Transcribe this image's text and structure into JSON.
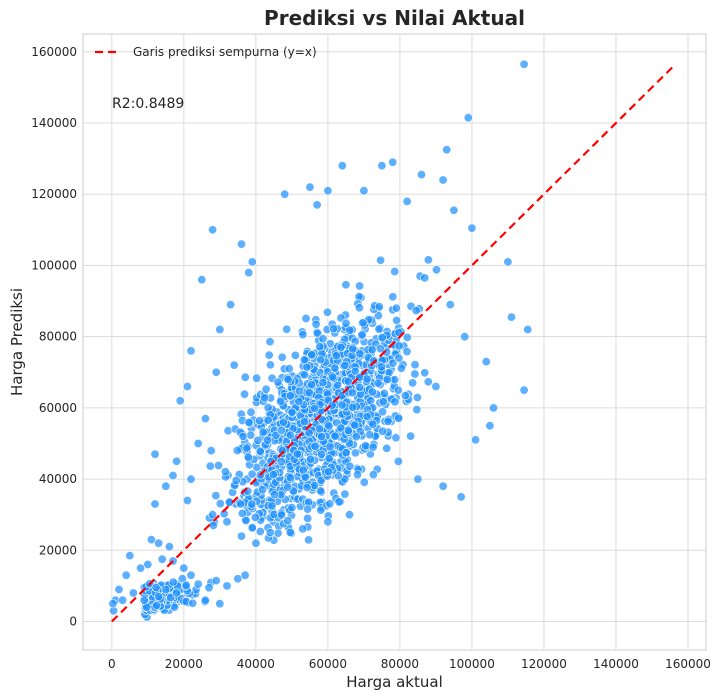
{
  "chart_data": {
    "type": "scatter",
    "title": "Prediksi vs Nilai Aktual",
    "xlabel": "Harga aktual",
    "ylabel": "Harga Prediksi",
    "xlim": [
      -8000,
      165000
    ],
    "ylim": [
      -8000,
      165000
    ],
    "xticks": [
      0,
      20000,
      40000,
      60000,
      80000,
      100000,
      120000,
      140000,
      160000
    ],
    "yticks": [
      0,
      20000,
      40000,
      60000,
      80000,
      100000,
      120000,
      140000,
      160000
    ],
    "xtick_labels": [
      "0",
      "20000",
      "40000",
      "60000",
      "80000",
      "100000",
      "120000",
      "140000",
      "160000"
    ],
    "ytick_labels": [
      "0",
      "20000",
      "40000",
      "60000",
      "80000",
      "100000",
      "120000",
      "140000",
      "160000"
    ],
    "grid": true,
    "legend_position": "top-left",
    "legend_label": "Garis prediksi sempurna (y=x)",
    "annotation": "R2:0.8489",
    "point_color": "#1E90FF",
    "line_color": "#FF0000",
    "reference_line": {
      "x": [
        0,
        156000
      ],
      "y": [
        0,
        156000
      ]
    },
    "points": [
      [
        114500,
        156500
      ],
      [
        99000,
        141500
      ],
      [
        93000,
        132500
      ],
      [
        78000,
        129000
      ],
      [
        64000,
        128000
      ],
      [
        75000,
        128000
      ],
      [
        86000,
        125500
      ],
      [
        92000,
        124000
      ],
      [
        55000,
        122000
      ],
      [
        60000,
        121000
      ],
      [
        70000,
        121000
      ],
      [
        48000,
        120000
      ],
      [
        82000,
        118000
      ],
      [
        57000,
        117000
      ],
      [
        95000,
        115500
      ],
      [
        100000,
        110500
      ],
      [
        28000,
        110000
      ],
      [
        110000,
        101000
      ],
      [
        36000,
        106000
      ],
      [
        39000,
        101000
      ],
      [
        25000,
        96000
      ],
      [
        38000,
        98000
      ],
      [
        33000,
        89000
      ],
      [
        30000,
        82000
      ],
      [
        22000,
        76000
      ],
      [
        111000,
        85500
      ],
      [
        115500,
        82000
      ],
      [
        114500,
        65000
      ],
      [
        105000,
        55000
      ],
      [
        101000,
        51000
      ],
      [
        106000,
        60000
      ],
      [
        104000,
        73000
      ],
      [
        98000,
        80000
      ],
      [
        94000,
        89000
      ],
      [
        90000,
        66000
      ],
      [
        85000,
        40000
      ],
      [
        92000,
        38000
      ],
      [
        97000,
        35000
      ],
      [
        66000,
        30000
      ],
      [
        60000,
        28000
      ],
      [
        53000,
        26000
      ],
      [
        44000,
        25000
      ],
      [
        50000,
        32000
      ],
      [
        40000,
        22000
      ],
      [
        36000,
        24000
      ],
      [
        32000,
        28000
      ],
      [
        28000,
        30000
      ],
      [
        22000,
        40000
      ],
      [
        18000,
        45000
      ],
      [
        12000,
        47000
      ],
      [
        12000,
        33000
      ],
      [
        15000,
        38000
      ],
      [
        17000,
        41000
      ],
      [
        21000,
        34000
      ],
      [
        24000,
        50000
      ],
      [
        19000,
        62000
      ],
      [
        21000,
        66000
      ],
      [
        26000,
        57000
      ],
      [
        29000,
        70000
      ],
      [
        34000,
        72000
      ],
      [
        35000,
        12000
      ],
      [
        37000,
        13000
      ],
      [
        32000,
        10000
      ],
      [
        29000,
        11500
      ],
      [
        27000,
        9500
      ],
      [
        24000,
        10500
      ],
      [
        22000,
        13000
      ],
      [
        20000,
        15000
      ],
      [
        17000,
        17000
      ],
      [
        14000,
        17500
      ],
      [
        10000,
        16000
      ],
      [
        8000,
        15000
      ],
      [
        5000,
        18500
      ],
      [
        4000,
        13000
      ],
      [
        2000,
        9000
      ],
      [
        1000,
        6000
      ],
      [
        500,
        3000
      ],
      [
        300,
        5000
      ],
      [
        3000,
        6000
      ],
      [
        6000,
        8000
      ],
      [
        9000,
        6000
      ],
      [
        13000,
        7000
      ],
      [
        15000,
        9000
      ],
      [
        18000,
        8000
      ],
      [
        26000,
        6000
      ],
      [
        30000,
        5000
      ],
      [
        11000,
        23000
      ],
      [
        13000,
        22000
      ],
      [
        16000,
        21000
      ]
    ]
  }
}
